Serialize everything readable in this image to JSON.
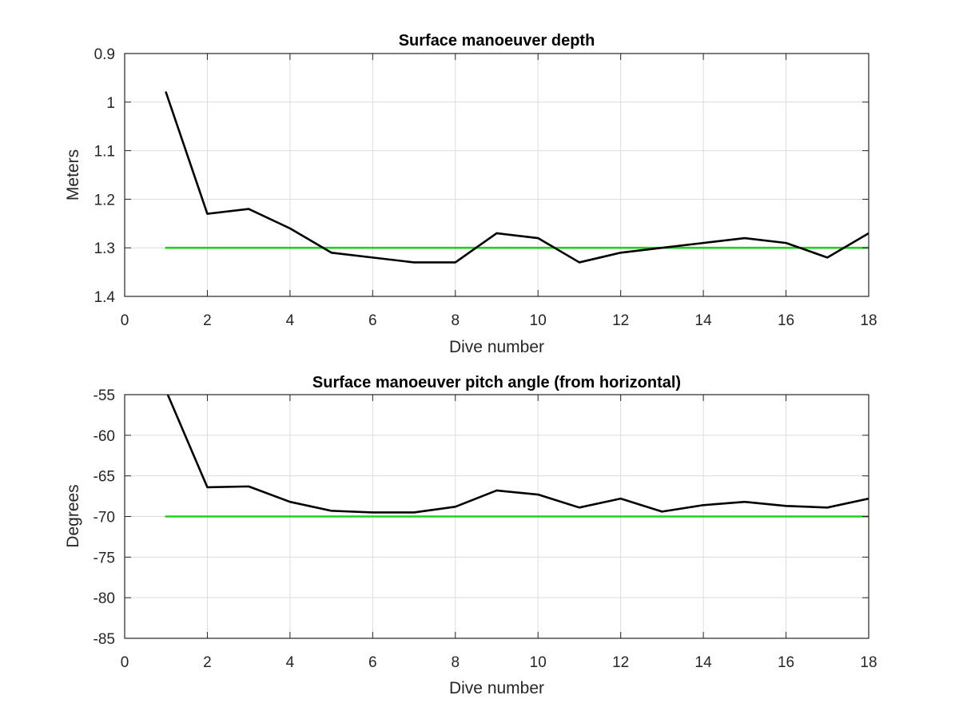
{
  "chart_data": [
    {
      "type": "line",
      "title": "Surface manoeuver depth",
      "xlabel": "Dive number",
      "ylabel": "Meters",
      "xlim": [
        0,
        18
      ],
      "ylim": [
        0.9,
        1.4
      ],
      "y_reversed": true,
      "grid": true,
      "xticks": [
        0,
        2,
        4,
        6,
        8,
        10,
        12,
        14,
        16,
        18
      ],
      "yticks": [
        0.9,
        1,
        1.1,
        1.2,
        1.3,
        1.4
      ],
      "xtick_labels": [
        "0",
        "2",
        "4",
        "6",
        "8",
        "10",
        "12",
        "14",
        "16",
        "18"
      ],
      "ytick_labels": [
        "0.9",
        "1",
        "1.1",
        "1.2",
        "1.3",
        "1.4"
      ],
      "series": [
        {
          "color": "#000000",
          "x": [
            1,
            2,
            3,
            4,
            5,
            6,
            7,
            8,
            9,
            10,
            11,
            12,
            13,
            14,
            15,
            16,
            17,
            18
          ],
          "values": [
            0.98,
            1.23,
            1.22,
            1.26,
            1.31,
            1.32,
            1.33,
            1.33,
            1.27,
            1.28,
            1.33,
            1.31,
            1.3,
            1.29,
            1.28,
            1.29,
            1.32,
            1.27
          ]
        },
        {
          "color": "#1fd11f",
          "x": [
            1,
            18
          ],
          "values": [
            1.3,
            1.3
          ]
        }
      ]
    },
    {
      "type": "line",
      "title": "Surface manoeuver pitch angle (from horizontal)",
      "xlabel": "Dive number",
      "ylabel": "Degrees",
      "xlim": [
        0,
        18
      ],
      "ylim": [
        -85,
        -55
      ],
      "y_reversed": false,
      "grid": true,
      "xticks": [
        0,
        2,
        4,
        6,
        8,
        10,
        12,
        14,
        16,
        18
      ],
      "yticks": [
        -55,
        -60,
        -65,
        -70,
        -75,
        -80,
        -85
      ],
      "xtick_labels": [
        "0",
        "2",
        "4",
        "6",
        "8",
        "10",
        "12",
        "14",
        "16",
        "18"
      ],
      "ytick_labels": [
        "-55",
        "-60",
        "-65",
        "-70",
        "-75",
        "-80",
        "-85"
      ],
      "series": [
        {
          "color": "#000000",
          "x": [
            1,
            2,
            3,
            4,
            5,
            6,
            7,
            8,
            9,
            10,
            11,
            12,
            13,
            14,
            15,
            16,
            17,
            18
          ],
          "values": [
            -54.5,
            -66.4,
            -66.3,
            -68.2,
            -69.3,
            -69.5,
            -69.5,
            -68.8,
            -66.8,
            -67.3,
            -68.9,
            -67.8,
            -69.4,
            -68.6,
            -68.2,
            -68.7,
            -68.9,
            -67.8
          ]
        },
        {
          "color": "#1fd11f",
          "x": [
            1,
            18
          ],
          "values": [
            -70,
            -70
          ]
        }
      ]
    }
  ]
}
